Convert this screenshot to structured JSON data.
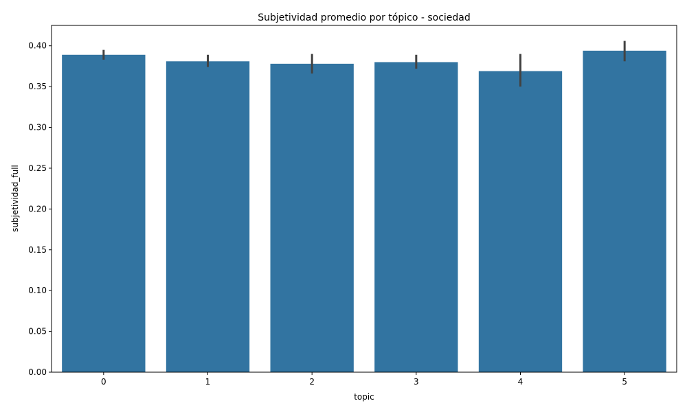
{
  "chart_data": {
    "type": "bar",
    "title": "Subjetividad promedio por tópico - sociedad",
    "xlabel": "topic",
    "ylabel": "subjetividad_full",
    "categories": [
      "0",
      "1",
      "2",
      "3",
      "4",
      "5"
    ],
    "values": [
      0.389,
      0.381,
      0.378,
      0.38,
      0.369,
      0.394
    ],
    "error_low": [
      0.383,
      0.374,
      0.366,
      0.372,
      0.35,
      0.381
    ],
    "error_high": [
      0.395,
      0.389,
      0.39,
      0.389,
      0.39,
      0.406
    ],
    "ylim": [
      0,
      0.425
    ],
    "yticks": [
      "0.00",
      "0.05",
      "0.10",
      "0.15",
      "0.20",
      "0.25",
      "0.30",
      "0.35",
      "0.40"
    ],
    "grid": false,
    "bar_color": "#3274a1",
    "error_color": "#424242"
  }
}
